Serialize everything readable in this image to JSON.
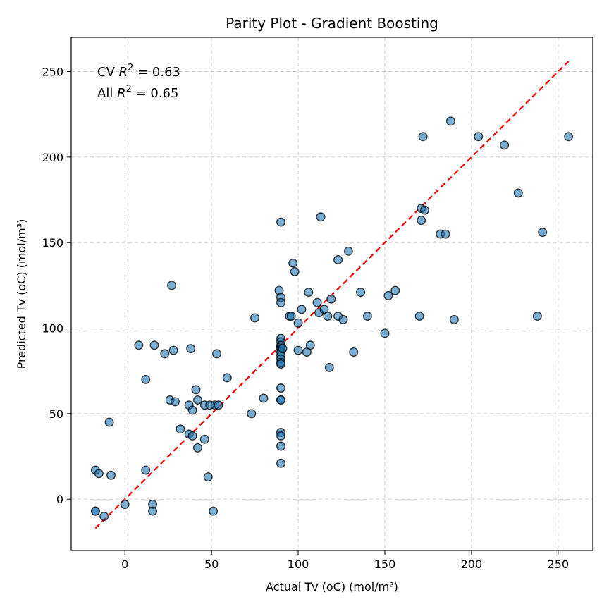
{
  "chart_data": {
    "type": "scatter",
    "title": "Parity Plot - Gradient Boosting",
    "xlabel": "Actual Tv (oC) (mol/m³)",
    "ylabel": "Predicted Tv (oC) (mol/m³)",
    "xlim": [
      -31,
      270
    ],
    "ylim": [
      -30,
      270
    ],
    "xticks": [
      0,
      50,
      100,
      150,
      200,
      250
    ],
    "yticks": [
      0,
      50,
      100,
      150,
      200,
      250
    ],
    "grid": true,
    "annotations": [
      {
        "prefix": "CV ",
        "var": "R",
        "sup": "2",
        "suffix": " = 0.63"
      },
      {
        "prefix": "All ",
        "var": "R",
        "sup": "2",
        "suffix": " = 0.65"
      }
    ],
    "parity_line": {
      "from": [
        -17,
        -17
      ],
      "to": [
        256,
        256
      ],
      "color": "#ff0000",
      "style": "dashed"
    },
    "marker_color": "#1f77b4",
    "marker_edge": "#000000",
    "points": [
      [
        -17,
        17
      ],
      [
        -15,
        15
      ],
      [
        -9,
        45
      ],
      [
        -8,
        14
      ],
      [
        -17,
        -7
      ],
      [
        -17,
        -7
      ],
      [
        -12,
        -10
      ],
      [
        0,
        -3
      ],
      [
        8,
        90
      ],
      [
        12,
        70
      ],
      [
        12,
        17
      ],
      [
        16,
        -3
      ],
      [
        16,
        -7
      ],
      [
        17,
        90
      ],
      [
        23,
        85
      ],
      [
        26,
        58
      ],
      [
        27,
        125
      ],
      [
        28,
        87
      ],
      [
        29,
        57
      ],
      [
        32,
        41
      ],
      [
        37,
        55
      ],
      [
        37,
        38
      ],
      [
        38,
        88
      ],
      [
        39,
        37
      ],
      [
        39,
        52
      ],
      [
        41,
        64
      ],
      [
        42,
        58
      ],
      [
        42,
        30
      ],
      [
        46,
        35
      ],
      [
        46,
        55
      ],
      [
        48,
        13
      ],
      [
        49,
        55
      ],
      [
        51,
        -7
      ],
      [
        52,
        55
      ],
      [
        53,
        85
      ],
      [
        54,
        55
      ],
      [
        59,
        71
      ],
      [
        73,
        50
      ],
      [
        75,
        106
      ],
      [
        80,
        59
      ],
      [
        89,
        122
      ],
      [
        90,
        162
      ],
      [
        90,
        118
      ],
      [
        90,
        115
      ],
      [
        90,
        94
      ],
      [
        90,
        92
      ],
      [
        90,
        90
      ],
      [
        90,
        89
      ],
      [
        90,
        88
      ],
      [
        90,
        86
      ],
      [
        90,
        84
      ],
      [
        90,
        82
      ],
      [
        90,
        80
      ],
      [
        90,
        79
      ],
      [
        90,
        65
      ],
      [
        90,
        58
      ],
      [
        90,
        58
      ],
      [
        90,
        39
      ],
      [
        90,
        37
      ],
      [
        90,
        31
      ],
      [
        90,
        21
      ],
      [
        91,
        88
      ],
      [
        95,
        107
      ],
      [
        96,
        107
      ],
      [
        97,
        138
      ],
      [
        98,
        133
      ],
      [
        100,
        103
      ],
      [
        100,
        87
      ],
      [
        102,
        111
      ],
      [
        105,
        86
      ],
      [
        106,
        121
      ],
      [
        107,
        90
      ],
      [
        111,
        115
      ],
      [
        112,
        109
      ],
      [
        113,
        165
      ],
      [
        115,
        111
      ],
      [
        117,
        107
      ],
      [
        118,
        77
      ],
      [
        119,
        117
      ],
      [
        123,
        140
      ],
      [
        123,
        107
      ],
      [
        126,
        105
      ],
      [
        129,
        145
      ],
      [
        132,
        86
      ],
      [
        136,
        121
      ],
      [
        140,
        107
      ],
      [
        150,
        97
      ],
      [
        152,
        119
      ],
      [
        156,
        122
      ],
      [
        170,
        107
      ],
      [
        171,
        170
      ],
      [
        171,
        163
      ],
      [
        172,
        212
      ],
      [
        173,
        169
      ],
      [
        182,
        155
      ],
      [
        185,
        155
      ],
      [
        188,
        221
      ],
      [
        190,
        105
      ],
      [
        204,
        212
      ],
      [
        219,
        207
      ],
      [
        227,
        179
      ],
      [
        238,
        107
      ],
      [
        241,
        156
      ],
      [
        256,
        212
      ]
    ]
  }
}
